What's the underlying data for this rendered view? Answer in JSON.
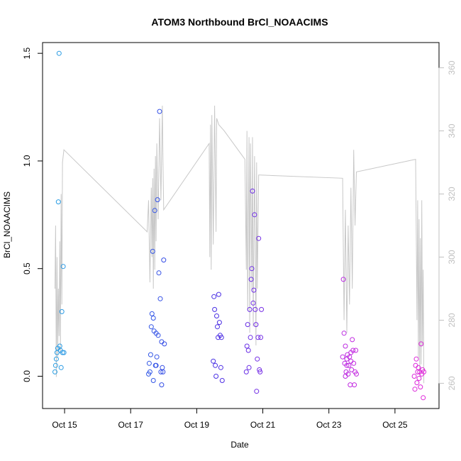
{
  "chart_data": {
    "type": "scatter",
    "title": "ATOM3 Northbound BrCl_NOAACIMS",
    "xlabel": "Date",
    "ylabel": "BrCl_NOAACIMS",
    "x_tick_labels": [
      "Oct 15",
      "Oct 17",
      "Oct 19",
      "Oct 21",
      "Oct 23",
      "Oct 25"
    ],
    "x_tick_dates": [
      "2017-10-15",
      "2017-10-17",
      "2017-10-19",
      "2017-10-21",
      "2017-10-23",
      "2017-10-25"
    ],
    "xlim": [
      "2017-10-14T08:00",
      "2017-10-26T08:00"
    ],
    "ylim": [
      -0.15,
      1.55
    ],
    "y_ticks": [
      0.0,
      0.5,
      1.0,
      1.5
    ],
    "y_tick_labels": [
      "0.0",
      "0.5",
      "1.0",
      "1.5"
    ],
    "y2lim": [
      252,
      368
    ],
    "y2_ticks": [
      260,
      280,
      300,
      320,
      340,
      360
    ],
    "y2_tick_labels": [
      "260",
      "280",
      "300",
      "320",
      "340",
      "360"
    ],
    "y2_color": "#c0c0c0",
    "line_color": "#c8c8c8",
    "grid": false,
    "legend": "none",
    "series": [
      {
        "values": [
          [
            "2017-10-14T17:00",
            0.02
          ],
          [
            "2017-10-14T17:30",
            0.05
          ],
          [
            "2017-10-14T18:00",
            0.08
          ],
          [
            "2017-10-14T18:30",
            0.11
          ],
          [
            "2017-10-14T19:00",
            0.13
          ],
          [
            "2017-10-14T19:30",
            0.81
          ],
          [
            "2017-10-14T20:00",
            1.5
          ],
          [
            "2017-10-14T20:30",
            0.14
          ],
          [
            "2017-10-14T21:00",
            0.12
          ],
          [
            "2017-10-14T21:30",
            0.04
          ],
          [
            "2017-10-14T22:00",
            0.3
          ],
          [
            "2017-10-14T22:30",
            0.11
          ],
          [
            "2017-10-14T23:00",
            0.51
          ],
          [
            "2017-10-14T23:30",
            0.11
          ],
          [
            "2017-10-17T13:00",
            0.01
          ],
          [
            "2017-10-17T13:30",
            0.06
          ],
          [
            "2017-10-17T14:00",
            0.02
          ],
          [
            "2017-10-17T14:30",
            0.1
          ],
          [
            "2017-10-17T15:00",
            0.23
          ],
          [
            "2017-10-17T15:30",
            0.29
          ],
          [
            "2017-10-17T16:00",
            0.58
          ],
          [
            "2017-10-17T16:30",
            0.27
          ],
          [
            "2017-10-17T17:00",
            0.21
          ],
          [
            "2017-10-17T17:30",
            0.77
          ],
          [
            "2017-10-17T18:00",
            0.05
          ],
          [
            "2017-10-17T18:30",
            0.2
          ],
          [
            "2017-10-17T19:00",
            0.09
          ],
          [
            "2017-10-17T19:30",
            0.82
          ],
          [
            "2017-10-17T20:00",
            0.19
          ],
          [
            "2017-10-17T20:30",
            0.48
          ],
          [
            "2017-10-17T21:00",
            1.23
          ],
          [
            "2017-10-17T21:30",
            0.36
          ],
          [
            "2017-10-17T22:00",
            0.02
          ],
          [
            "2017-10-17T22:30",
            0.16
          ],
          [
            "2017-10-17T23:00",
            0.04
          ],
          [
            "2017-10-17T23:30",
            0.02
          ],
          [
            "2017-10-18T00:00",
            0.54
          ],
          [
            "2017-10-18T00:30",
            0.15
          ],
          [
            "2017-10-17T16:30",
            -0.02
          ],
          [
            "2017-10-17T18:30",
            0.05
          ],
          [
            "2017-10-17T22:30",
            -0.04
          ],
          [
            "2017-10-19T12:00",
            0.07
          ],
          [
            "2017-10-19T12:30",
            0.37
          ],
          [
            "2017-10-19T13:00",
            0.31
          ],
          [
            "2017-10-19T13:30",
            0.05
          ],
          [
            "2017-10-19T14:00",
            0.0
          ],
          [
            "2017-10-19T14:30",
            0.28
          ],
          [
            "2017-10-19T15:00",
            0.23
          ],
          [
            "2017-10-19T15:30",
            0.18
          ],
          [
            "2017-10-19T16:00",
            0.38
          ],
          [
            "2017-10-19T16:30",
            0.25
          ],
          [
            "2017-10-19T17:00",
            0.19
          ],
          [
            "2017-10-19T17:30",
            0.04
          ],
          [
            "2017-10-19T18:00",
            0.18
          ],
          [
            "2017-10-19T18:30",
            -0.02
          ],
          [
            "2017-10-20T12:00",
            0.02
          ],
          [
            "2017-10-20T12:30",
            0.14
          ],
          [
            "2017-10-20T13:00",
            0.24
          ],
          [
            "2017-10-20T13:30",
            0.12
          ],
          [
            "2017-10-20T14:00",
            0.04
          ],
          [
            "2017-10-20T14:30",
            0.31
          ],
          [
            "2017-10-20T15:00",
            0.18
          ],
          [
            "2017-10-20T15:30",
            0.45
          ],
          [
            "2017-10-20T16:00",
            0.5
          ],
          [
            "2017-10-20T16:30",
            0.86
          ],
          [
            "2017-10-20T17:00",
            0.34
          ],
          [
            "2017-10-20T17:30",
            0.4
          ],
          [
            "2017-10-20T18:00",
            0.75
          ],
          [
            "2017-10-20T18:30",
            0.31
          ],
          [
            "2017-10-20T19:00",
            0.24
          ],
          [
            "2017-10-20T19:30",
            -0.07
          ],
          [
            "2017-10-20T20:00",
            0.08
          ],
          [
            "2017-10-20T20:30",
            0.18
          ],
          [
            "2017-10-20T21:00",
            0.64
          ],
          [
            "2017-10-20T21:30",
            0.03
          ],
          [
            "2017-10-20T22:00",
            0.02
          ],
          [
            "2017-10-20T22:30",
            0.18
          ],
          [
            "2017-10-20T23:00",
            0.31
          ],
          [
            "2017-10-23T10:00",
            0.09
          ],
          [
            "2017-10-23T10:30",
            0.45
          ],
          [
            "2017-10-23T11:00",
            0.2
          ],
          [
            "2017-10-23T11:30",
            0.06
          ],
          [
            "2017-10-23T12:00",
            0.14
          ],
          [
            "2017-10-23T12:30",
            0.02
          ],
          [
            "2017-10-23T13:00",
            0.08
          ],
          [
            "2017-10-23T13:30",
            0.1
          ],
          [
            "2017-10-23T14:00",
            0.01
          ],
          [
            "2017-10-23T14:30",
            0.05
          ],
          [
            "2017-10-23T15:00",
            0.09
          ],
          [
            "2017-10-23T15:30",
            -0.04
          ],
          [
            "2017-10-23T16:00",
            0.07
          ],
          [
            "2017-10-23T16:30",
            0.03
          ],
          [
            "2017-10-23T17:00",
            0.17
          ],
          [
            "2017-10-23T17:30",
            0.12
          ],
          [
            "2017-10-23T18:00",
            0.06
          ],
          [
            "2017-10-23T18:30",
            -0.04
          ],
          [
            "2017-10-23T19:00",
            0.02
          ],
          [
            "2017-10-23T19:30",
            0.12
          ],
          [
            "2017-10-23T20:00",
            0.01
          ],
          [
            "2017-10-23T13:00",
            0.05
          ],
          [
            "2017-10-23T16:00",
            0.11
          ],
          [
            "2017-10-23T12:00",
            0.0
          ],
          [
            "2017-10-25T14:00",
            0.0
          ],
          [
            "2017-10-25T14:30",
            -0.06
          ],
          [
            "2017-10-25T15:00",
            0.05
          ],
          [
            "2017-10-25T15:30",
            0.08
          ],
          [
            "2017-10-25T16:00",
            -0.03
          ],
          [
            "2017-10-25T16:30",
            0.02
          ],
          [
            "2017-10-25T17:00",
            0.04
          ],
          [
            "2017-10-25T17:30",
            -0.01
          ],
          [
            "2017-10-25T18:00",
            0.02
          ],
          [
            "2017-10-25T18:30",
            -0.05
          ],
          [
            "2017-10-25T19:00",
            0.15
          ],
          [
            "2017-10-25T19:30",
            0.01
          ],
          [
            "2017-10-25T20:00",
            0.03
          ],
          [
            "2017-10-25T20:30",
            -0.1
          ],
          [
            "2017-10-25T21:00",
            0.02
          ]
        ]
      },
      {
        "axis": "right",
        "values": [
          [
            "2017-10-14T17:00",
            290
          ],
          [
            "2017-10-14T17:30",
            310
          ],
          [
            "2017-10-14T18:00",
            262
          ],
          [
            "2017-10-14T18:30",
            300
          ],
          [
            "2017-10-14T19:00",
            268
          ],
          [
            "2017-10-14T19:30",
            290
          ],
          [
            "2017-10-14T20:00",
            275
          ],
          [
            "2017-10-14T20:30",
            305
          ],
          [
            "2017-10-14T21:00",
            270
          ],
          [
            "2017-10-14T21:30",
            320
          ],
          [
            "2017-10-14T22:00",
            285
          ],
          [
            "2017-10-14T22:30",
            330
          ],
          [
            "2017-10-14T23:30",
            334
          ],
          [
            "2017-10-17T12:00",
            308
          ],
          [
            "2017-10-17T13:00",
            318
          ],
          [
            "2017-10-17T14:00",
            292
          ],
          [
            "2017-10-17T15:00",
            322
          ],
          [
            "2017-10-17T15:30",
            300
          ],
          [
            "2017-10-17T16:00",
            325
          ],
          [
            "2017-10-17T16:30",
            290
          ],
          [
            "2017-10-17T17:00",
            328
          ],
          [
            "2017-10-17T17:30",
            296
          ],
          [
            "2017-10-17T18:00",
            332
          ],
          [
            "2017-10-17T18:30",
            305
          ],
          [
            "2017-10-17T19:00",
            336
          ],
          [
            "2017-10-17T20:00",
            312
          ],
          [
            "2017-10-17T21:00",
            344
          ],
          [
            "2017-10-17T22:00",
            318
          ],
          [
            "2017-10-17T23:00",
            348
          ],
          [
            "2017-10-17T23:30",
            330
          ],
          [
            "2017-10-18T00:00",
            315
          ],
          [
            "2017-10-19T09:00",
            336
          ],
          [
            "2017-10-19T09:30",
            300
          ],
          [
            "2017-10-19T10:00",
            342
          ],
          [
            "2017-10-19T10:30",
            296
          ],
          [
            "2017-10-19T11:00",
            345
          ],
          [
            "2017-10-19T12:00",
            304
          ],
          [
            "2017-10-19T13:00",
            348
          ],
          [
            "2017-10-19T14:00",
            308
          ],
          [
            "2017-10-19T14:30",
            344
          ],
          [
            "2017-10-19T16:00",
            342
          ],
          [
            "2017-10-19T20:00",
            340
          ],
          [
            "2017-10-20T11:00",
            331
          ],
          [
            "2017-10-20T12:00",
            296
          ],
          [
            "2017-10-20T12:30",
            340
          ],
          [
            "2017-10-20T13:00",
            283
          ],
          [
            "2017-10-20T14:00",
            338
          ],
          [
            "2017-10-20T14:30",
            276
          ],
          [
            "2017-10-20T15:00",
            336
          ],
          [
            "2017-10-20T16:00",
            290
          ],
          [
            "2017-10-20T16:30",
            338
          ],
          [
            "2017-10-20T17:00",
            278
          ],
          [
            "2017-10-20T18:00",
            332
          ],
          [
            "2017-10-20T19:00",
            272
          ],
          [
            "2017-10-20T19:30",
            330
          ],
          [
            "2017-10-20T20:00",
            290
          ],
          [
            "2017-10-20T21:00",
            326
          ],
          [
            "2017-10-20T22:00",
            326
          ],
          [
            "2017-10-23T10:00",
            325
          ],
          [
            "2017-10-23T11:00",
            280
          ],
          [
            "2017-10-23T12:00",
            315
          ],
          [
            "2017-10-23T13:00",
            276
          ],
          [
            "2017-10-23T14:00",
            310
          ],
          [
            "2017-10-23T15:00",
            285
          ],
          [
            "2017-10-23T16:00",
            322
          ],
          [
            "2017-10-23T17:00",
            290
          ],
          [
            "2017-10-23T18:00",
            334
          ],
          [
            "2017-10-23T19:00",
            310
          ],
          [
            "2017-10-23T20:00",
            327
          ],
          [
            "2017-10-25T15:00",
            331
          ],
          [
            "2017-10-25T15:30",
            305
          ],
          [
            "2017-10-25T16:00",
            280
          ],
          [
            "2017-10-25T16:30",
            318
          ],
          [
            "2017-10-25T17:00",
            268
          ],
          [
            "2017-10-25T17:30",
            312
          ],
          [
            "2017-10-25T18:00",
            262
          ],
          [
            "2017-10-25T18:30",
            306
          ],
          [
            "2017-10-25T19:00",
            266
          ],
          [
            "2017-10-25T19:30",
            318
          ],
          [
            "2017-10-25T20:00",
            272
          ],
          [
            "2017-10-25T20:30",
            296
          ],
          [
            "2017-10-25T21:00",
            260
          ]
        ]
      }
    ],
    "point_colors": [
      "#29a8e3",
      "#2f6fe8",
      "#3a2fe3",
      "#8a2ee6",
      "#c72ae0",
      "#e528d8"
    ]
  }
}
